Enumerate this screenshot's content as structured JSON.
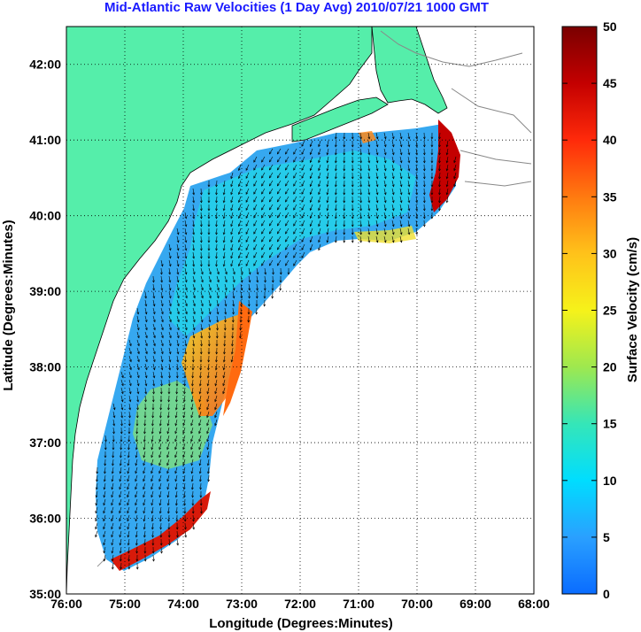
{
  "title": "Mid-Atlantic Raw Velocities (1 Day Avg) 2010/07/21 1000 GMT",
  "xlabel": "Longitude (Degrees:Minutes)",
  "ylabel": "Latitude (Degrees:Minutes)",
  "colorbar_label": "Surface Velocity (cm/s)",
  "x_ticks": [
    "76:00",
    "75:00",
    "74:00",
    "73:00",
    "72:00",
    "71:00",
    "70:00",
    "69:00",
    "68:00"
  ],
  "y_ticks": [
    "35:00",
    "36:00",
    "37:00",
    "38:00",
    "39:00",
    "40:00",
    "41:00",
    "42:00"
  ],
  "colorbar_ticks": [
    "0",
    "5",
    "10",
    "15",
    "20",
    "25",
    "30",
    "35",
    "40",
    "45",
    "50"
  ],
  "colors": {
    "land": "#55eeaa",
    "title": "#1a1aff",
    "coast_line": "#888888",
    "colormap": [
      "#0a6cff",
      "#2aa0ff",
      "#00ddff",
      "#35e6b8",
      "#9ee84f",
      "#f6f21a",
      "#ffc21a",
      "#ff7a10",
      "#ff2a0a",
      "#c40000",
      "#7a0000"
    ]
  },
  "chart_data": {
    "type": "heatmap",
    "xlim": [
      -76,
      -68
    ],
    "ylim": [
      35,
      42.5
    ],
    "clim": [
      0,
      50
    ],
    "grid": true,
    "colorbar": "right"
  }
}
